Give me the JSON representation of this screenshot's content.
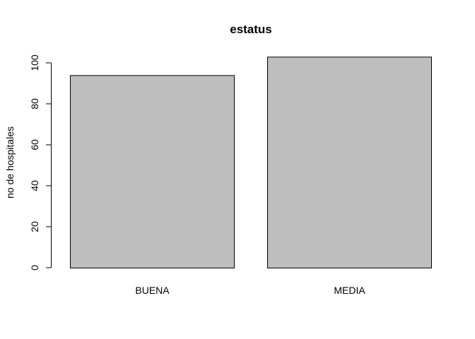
{
  "chart_data": {
    "type": "bar",
    "title": "estatus",
    "xlabel": "",
    "ylabel": "no de hospitales",
    "categories": [
      "BUENA",
      "MEDIA"
    ],
    "values": [
      94,
      103
    ],
    "ylim": [
      0,
      103
    ],
    "yticks": [
      0,
      20,
      40,
      60,
      80,
      100
    ],
    "grid": false,
    "bar_color": "#bebebe",
    "border_color": "#000000"
  }
}
